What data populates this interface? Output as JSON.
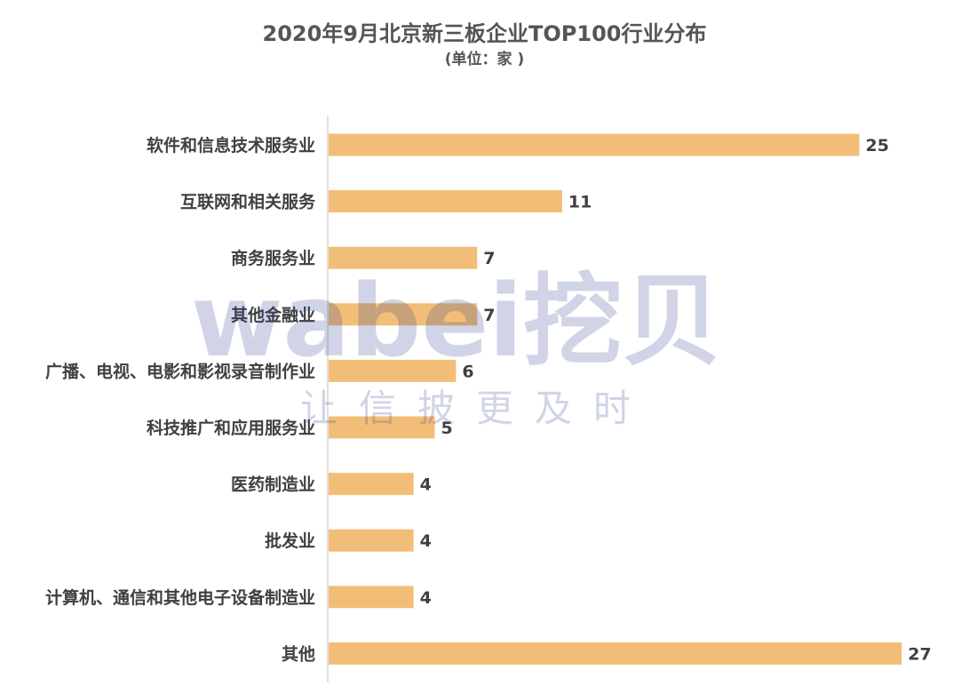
{
  "chart_data": {
    "type": "bar",
    "orientation": "horizontal",
    "title": "2020年9月北京新三板企业TOP100行业分布",
    "subtitle": "(单位：家 )",
    "categories": [
      "软件和信息技术服务业",
      "互联网和相关服务",
      "商务服务业",
      "其他金融业",
      "广播、电视、电影和影视录音制作业",
      "科技推广和应用服务业",
      "医药制造业",
      "批发业",
      "计算机、通信和其他电子设备制造业",
      "其他"
    ],
    "values": [
      25,
      11,
      7,
      7,
      6,
      5,
      4,
      4,
      4,
      27
    ],
    "xlim": [
      0,
      28
    ],
    "bar_color": "#F2BE77",
    "grid": false,
    "legend": "none"
  },
  "watermark": {
    "brand_text": "wabei挖贝",
    "slogan_text": "让信披更及时",
    "color": "#2F3F8F"
  }
}
